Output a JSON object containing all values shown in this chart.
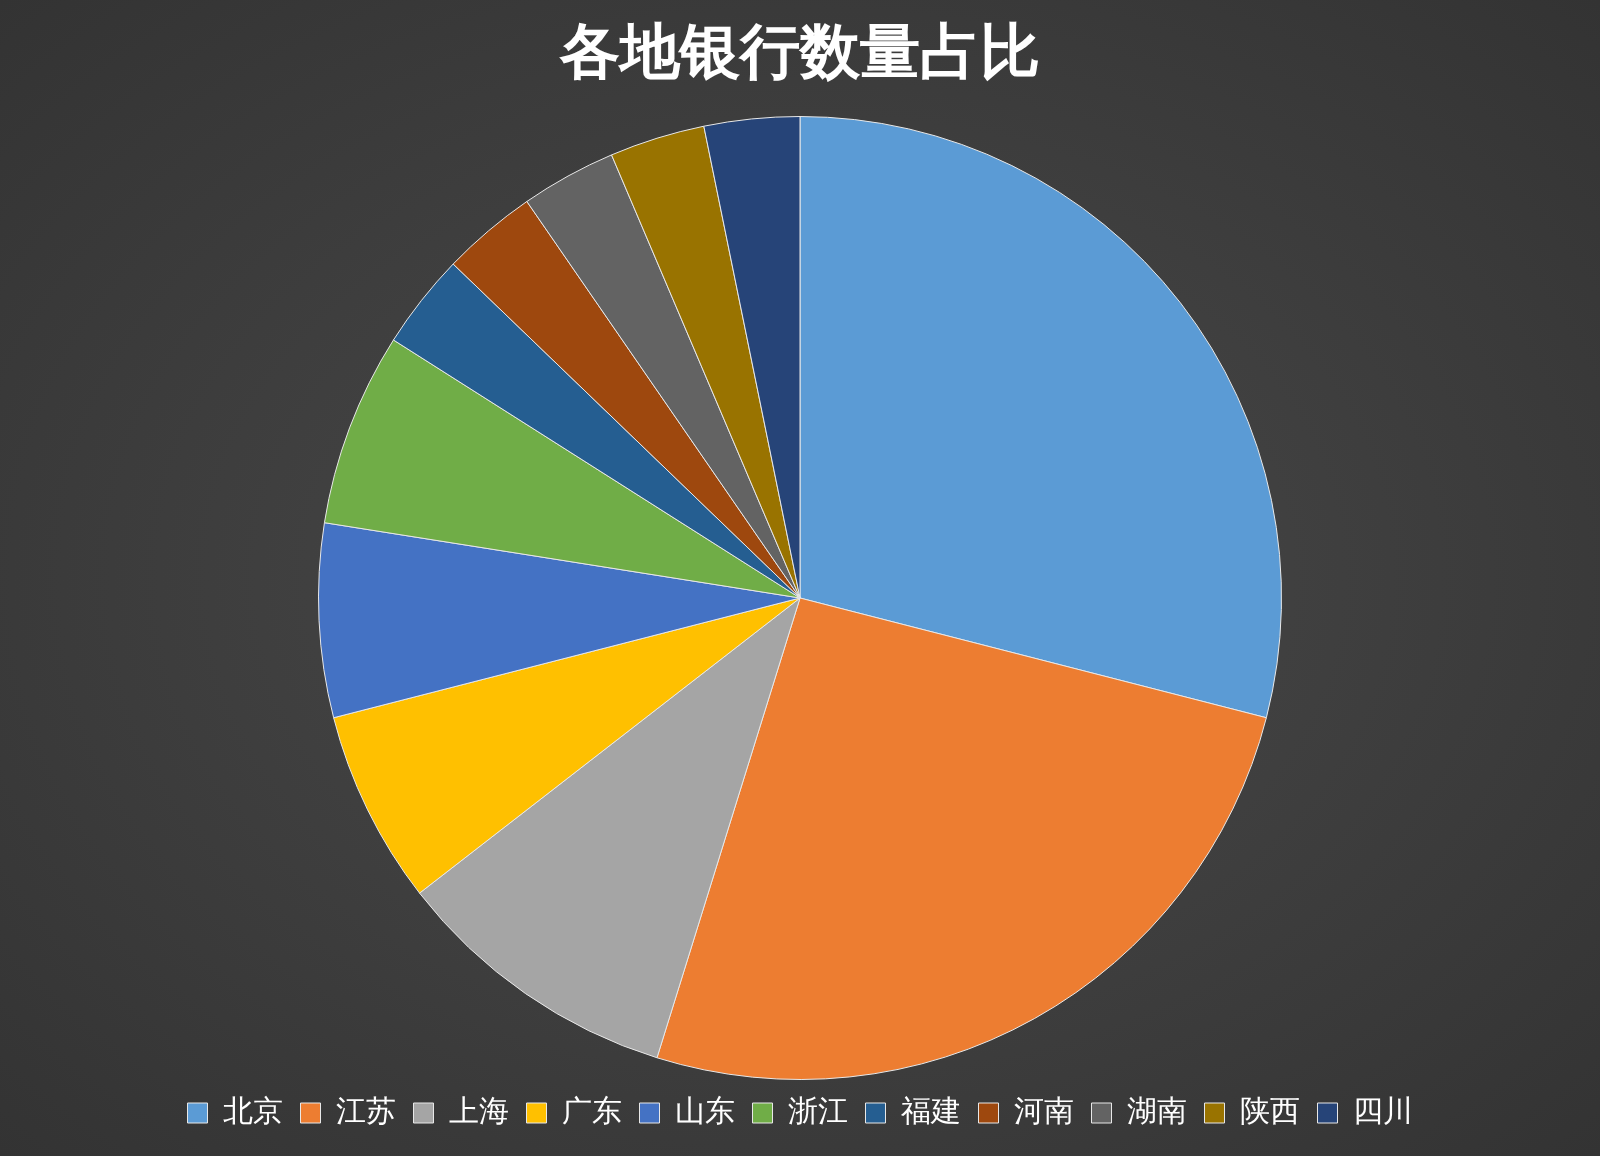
{
  "chart_data": {
    "type": "pie",
    "title": "各地银行数量占比",
    "categories": [
      "北京",
      "江苏",
      "上海",
      "广东",
      "山东",
      "浙江",
      "福建",
      "河南",
      "湖南",
      "陕西",
      "四川"
    ],
    "values": [
      29,
      25.8,
      9.7,
      6.5,
      6.5,
      6.5,
      3.2,
      3.2,
      3.2,
      3.2,
      3.2
    ],
    "colors": [
      "#5b9bd5",
      "#ed7d31",
      "#a5a5a5",
      "#ffc000",
      "#4472c4",
      "#70ad47",
      "#255e91",
      "#9e480e",
      "#636363",
      "#997300",
      "#264478"
    ],
    "legend": "bottom"
  }
}
